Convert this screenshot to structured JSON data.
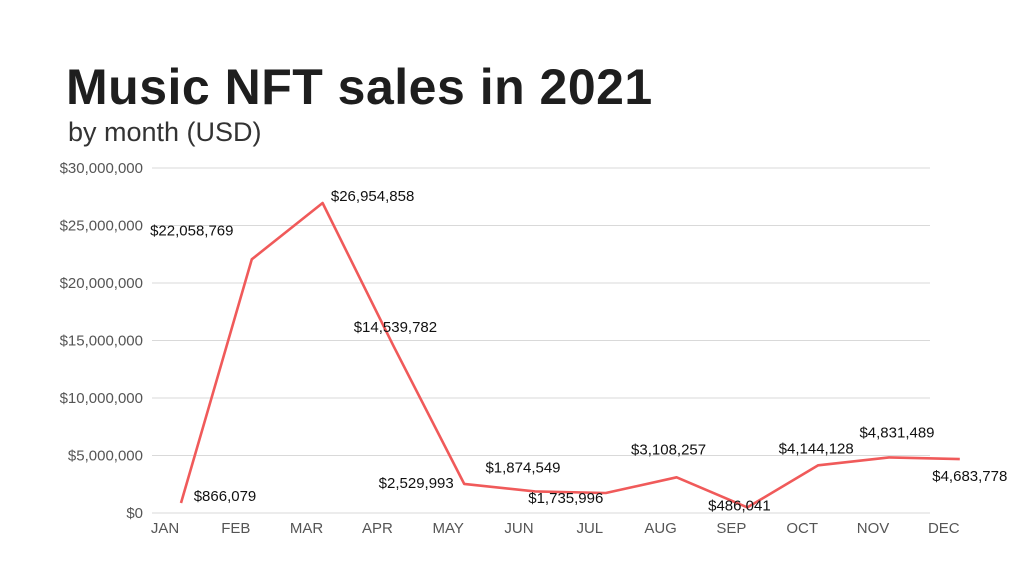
{
  "title": "Music NFT sales in 2021",
  "subtitle": "by month (USD)",
  "chart_data": {
    "type": "line",
    "categories": [
      "JAN",
      "FEB",
      "MAR",
      "APR",
      "MAY",
      "JUN",
      "JUL",
      "AUG",
      "SEP",
      "OCT",
      "NOV",
      "DEC"
    ],
    "values": [
      866079,
      22058769,
      26954858,
      14539782,
      2529993,
      1874549,
      1735996,
      3108257,
      486041,
      4144128,
      4831489,
      4683778
    ],
    "data_labels": [
      "$866,079",
      "$22,058,769",
      "$26,954,858",
      "$14,539,782",
      "$2,529,993",
      "$1,874,549",
      "$1,735,996",
      "$3,108,257",
      "$486,041",
      "$4,144,128",
      "$4,831,489",
      "$4,683,778"
    ],
    "yticks": [
      0,
      5000000,
      10000000,
      15000000,
      20000000,
      25000000,
      30000000
    ],
    "ytick_labels": [
      "$0",
      "$5,000,000",
      "$10,000,000",
      "$15,000,000",
      "$20,000,000",
      "$25,000,000",
      "$30,000,000"
    ],
    "ylim": [
      0,
      30000000
    ],
    "grid": true,
    "line_color": "#f05a5a",
    "grid_color": "#d9d9d9"
  }
}
